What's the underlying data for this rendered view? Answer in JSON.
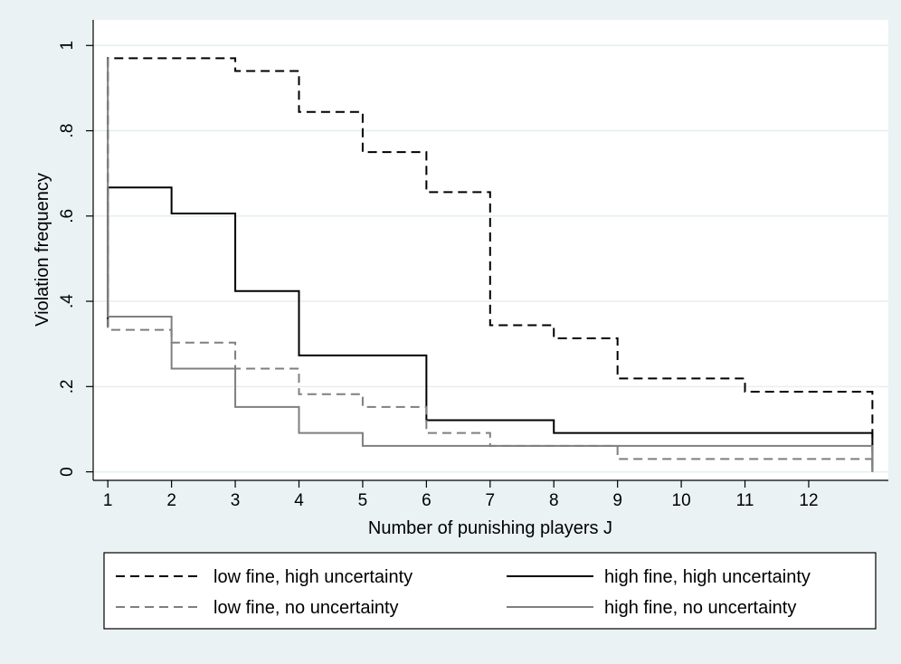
{
  "chart_data": {
    "type": "line",
    "title": "",
    "xlabel": "Number of punishing players J",
    "ylabel": "Violation frequency",
    "xlim": [
      0.77,
      13.25
    ],
    "ylim": [
      -0.02,
      1.06
    ],
    "xticks": [
      1,
      2,
      3,
      4,
      5,
      6,
      7,
      8,
      9,
      10,
      11,
      12
    ],
    "xtick_labels": [
      "1",
      "2",
      "3",
      "4",
      "5",
      "6",
      "7",
      "8",
      "9",
      "10",
      "11",
      "12"
    ],
    "yticks": [
      0,
      0.2,
      0.4,
      0.6,
      0.8,
      1
    ],
    "ytick_labels": [
      "0",
      ".2",
      ".4",
      ".6",
      ".8",
      "1"
    ],
    "grid": true,
    "legend_position": "bottom",
    "step": true,
    "series": [
      {
        "name": "low fine, high uncertainty",
        "color": "#000000",
        "dash": "dashed",
        "x": [
          1,
          1,
          3,
          4,
          5,
          6,
          7,
          8,
          9,
          11,
          13,
          13
        ],
        "y": [
          0.34,
          0.97,
          0.94,
          0.844,
          0.75,
          0.656,
          0.344,
          0.313,
          0.219,
          0.188,
          0.188,
          0.0
        ]
      },
      {
        "name": "high fine, high uncertainty",
        "color": "#000000",
        "dash": "solid",
        "x": [
          1,
          1,
          2,
          3,
          4,
          6,
          8,
          13,
          13
        ],
        "y": [
          0.34,
          0.667,
          0.606,
          0.424,
          0.273,
          0.121,
          0.091,
          0.091,
          0.0
        ]
      },
      {
        "name": "low fine, no uncertainty",
        "color": "#7f7f7f",
        "dash": "dashed",
        "x": [
          1,
          1,
          2,
          3,
          4,
          5,
          6,
          7,
          9,
          13,
          13
        ],
        "y": [
          0.97,
          0.333,
          0.303,
          0.242,
          0.182,
          0.152,
          0.091,
          0.061,
          0.03,
          0.03,
          0.0
        ]
      },
      {
        "name": "high fine, no uncertainty",
        "color": "#7f7f7f",
        "dash": "solid",
        "x": [
          1,
          1,
          2,
          3,
          4,
          5,
          13,
          13
        ],
        "y": [
          0.97,
          0.364,
          0.242,
          0.152,
          0.091,
          0.061,
          0.061,
          0.0
        ]
      }
    ]
  }
}
